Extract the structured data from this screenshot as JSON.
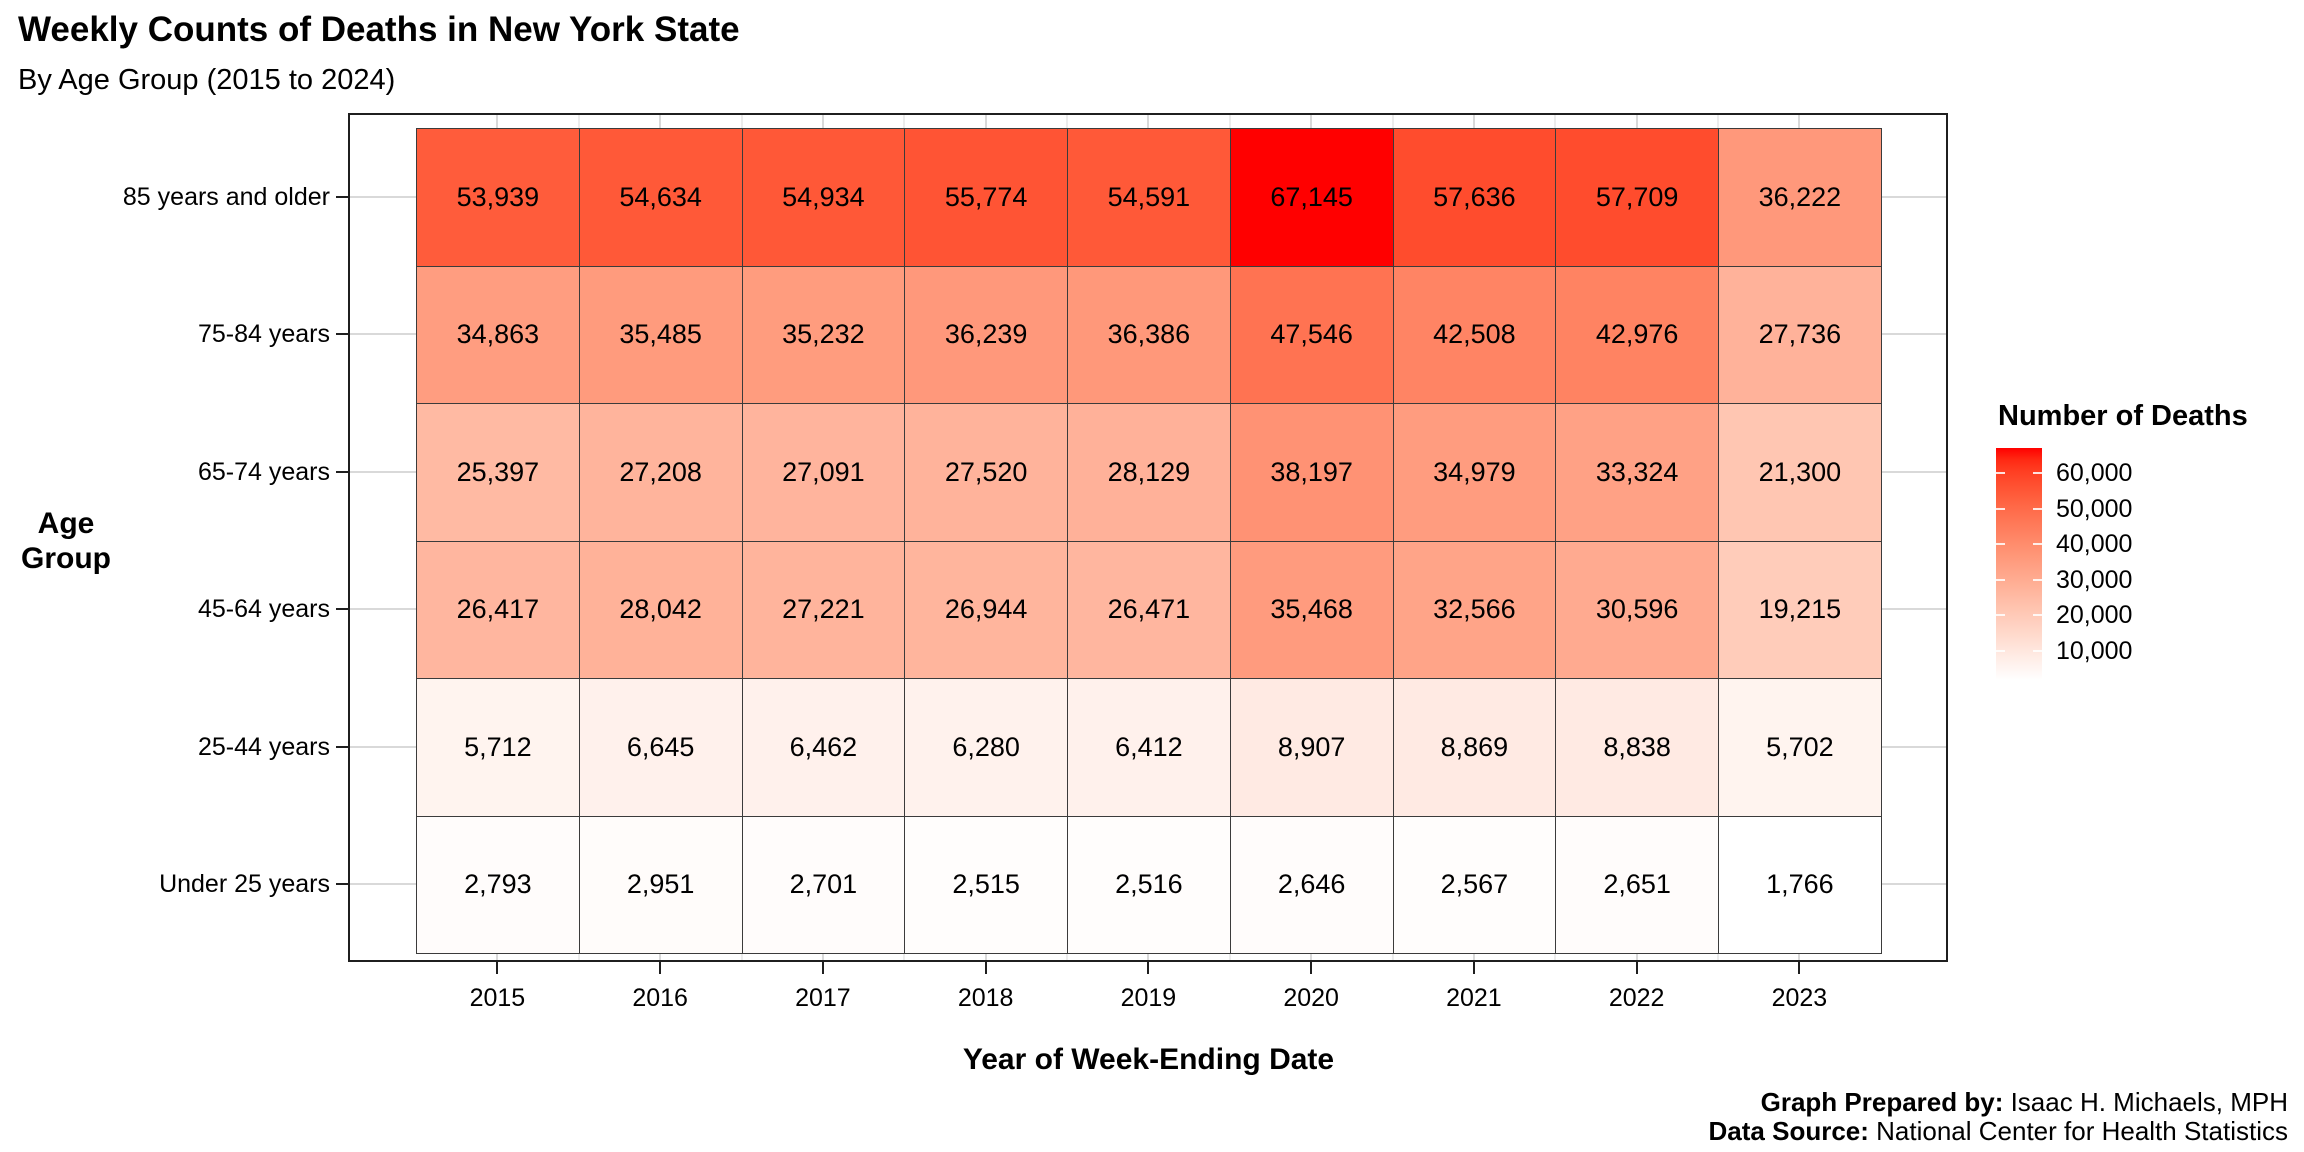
{
  "chart_data": {
    "type": "heatmap",
    "title": "Weekly Counts of Deaths in New York State",
    "subtitle": "By Age Group (2015 to 2024)",
    "xlabel": "Year of Week-Ending Date",
    "ylabel": "Age Group",
    "x": [
      2015,
      2016,
      2017,
      2018,
      2019,
      2020,
      2021,
      2022,
      2023
    ],
    "categories_y": [
      "85 years and older",
      "75-84 years",
      "65-74 years",
      "45-64 years",
      "25-44 years",
      "Under 25 years"
    ],
    "series": [
      {
        "name": "85 years and older",
        "values": [
          53939,
          54634,
          54934,
          55774,
          54591,
          67145,
          57636,
          57709,
          36222
        ]
      },
      {
        "name": "75-84 years",
        "values": [
          34863,
          35485,
          35232,
          36239,
          36386,
          47546,
          42508,
          42976,
          27736
        ]
      },
      {
        "name": "65-74 years",
        "values": [
          25397,
          27208,
          27091,
          27520,
          28129,
          38197,
          34979,
          33324,
          21300
        ]
      },
      {
        "name": "45-64 years",
        "values": [
          26417,
          28042,
          27221,
          26944,
          26471,
          35468,
          32566,
          30596,
          19215
        ]
      },
      {
        "name": "25-44 years",
        "values": [
          5712,
          6645,
          6462,
          6280,
          6412,
          8907,
          8869,
          8838,
          5702
        ]
      },
      {
        "name": "Under 25 years",
        "values": [
          2793,
          2951,
          2701,
          2515,
          2516,
          2646,
          2567,
          2651,
          1766
        ]
      }
    ],
    "legend": {
      "title": "Number of Deaths",
      "tick_values": [
        60000,
        50000,
        40000,
        30000,
        20000,
        10000
      ],
      "tick_labels": [
        "60,000",
        "50,000",
        "40,000",
        "30,000",
        "20,000",
        "10,000"
      ],
      "min": 1766,
      "max": 67145,
      "low_color": "#FFFFFF",
      "high_color": "#FF0000"
    },
    "grid": "on",
    "legend_position": "right"
  },
  "caption": {
    "prepared_by_label": "Graph Prepared by:",
    "prepared_by_value": " Isaac H. Michaels, MPH",
    "source_label": "Data Source:",
    "source_value": " National Center for Health Statistics"
  }
}
